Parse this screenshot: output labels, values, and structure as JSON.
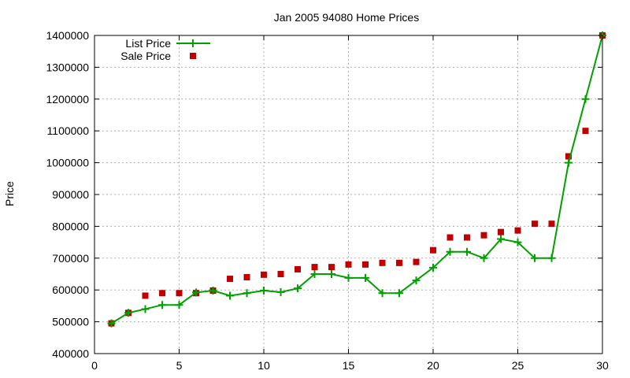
{
  "chart_data": {
    "type": "line",
    "title": "Jan 2005 94080 Home Prices",
    "xlabel": "",
    "ylabel": "Price",
    "xlim": [
      0,
      30
    ],
    "ylim": [
      400000,
      1400000
    ],
    "xticks": [
      "0",
      "5",
      "10",
      "15",
      "20",
      "25",
      "30"
    ],
    "yticks": [
      "400000",
      "500000",
      "600000",
      "700000",
      "800000",
      "900000",
      "1000000",
      "1100000",
      "1200000",
      "1300000",
      "1400000"
    ],
    "grid": true,
    "legend_position": "top-left",
    "x": [
      1,
      2,
      3,
      4,
      5,
      6,
      7,
      8,
      9,
      10,
      11,
      12,
      13,
      14,
      15,
      16,
      17,
      18,
      19,
      20,
      21,
      22,
      23,
      24,
      25,
      26,
      27,
      28,
      29,
      30
    ],
    "series": [
      {
        "name": "List Price",
        "style": "line-with-plus-markers",
        "color": "#00a000",
        "values": [
          495000,
          528000,
          540000,
          553000,
          553000,
          592000,
          598000,
          582000,
          590000,
          598000,
          593000,
          605000,
          650000,
          650000,
          638000,
          638000,
          590000,
          590000,
          630000,
          670000,
          720000,
          720000,
          700000,
          760000,
          750000,
          700000,
          700000,
          1000000,
          1200000,
          1400000
        ]
      },
      {
        "name": "Sale Price",
        "style": "square-markers",
        "color": "#c00000",
        "values": [
          495000,
          528000,
          582000,
          590000,
          590000,
          590000,
          598000,
          635000,
          640000,
          648000,
          650000,
          665000,
          672000,
          672000,
          680000,
          680000,
          685000,
          685000,
          688000,
          725000,
          765000,
          765000,
          772000,
          782000,
          787000,
          808000,
          808000,
          1020000,
          1100000,
          1400000
        ]
      }
    ]
  }
}
